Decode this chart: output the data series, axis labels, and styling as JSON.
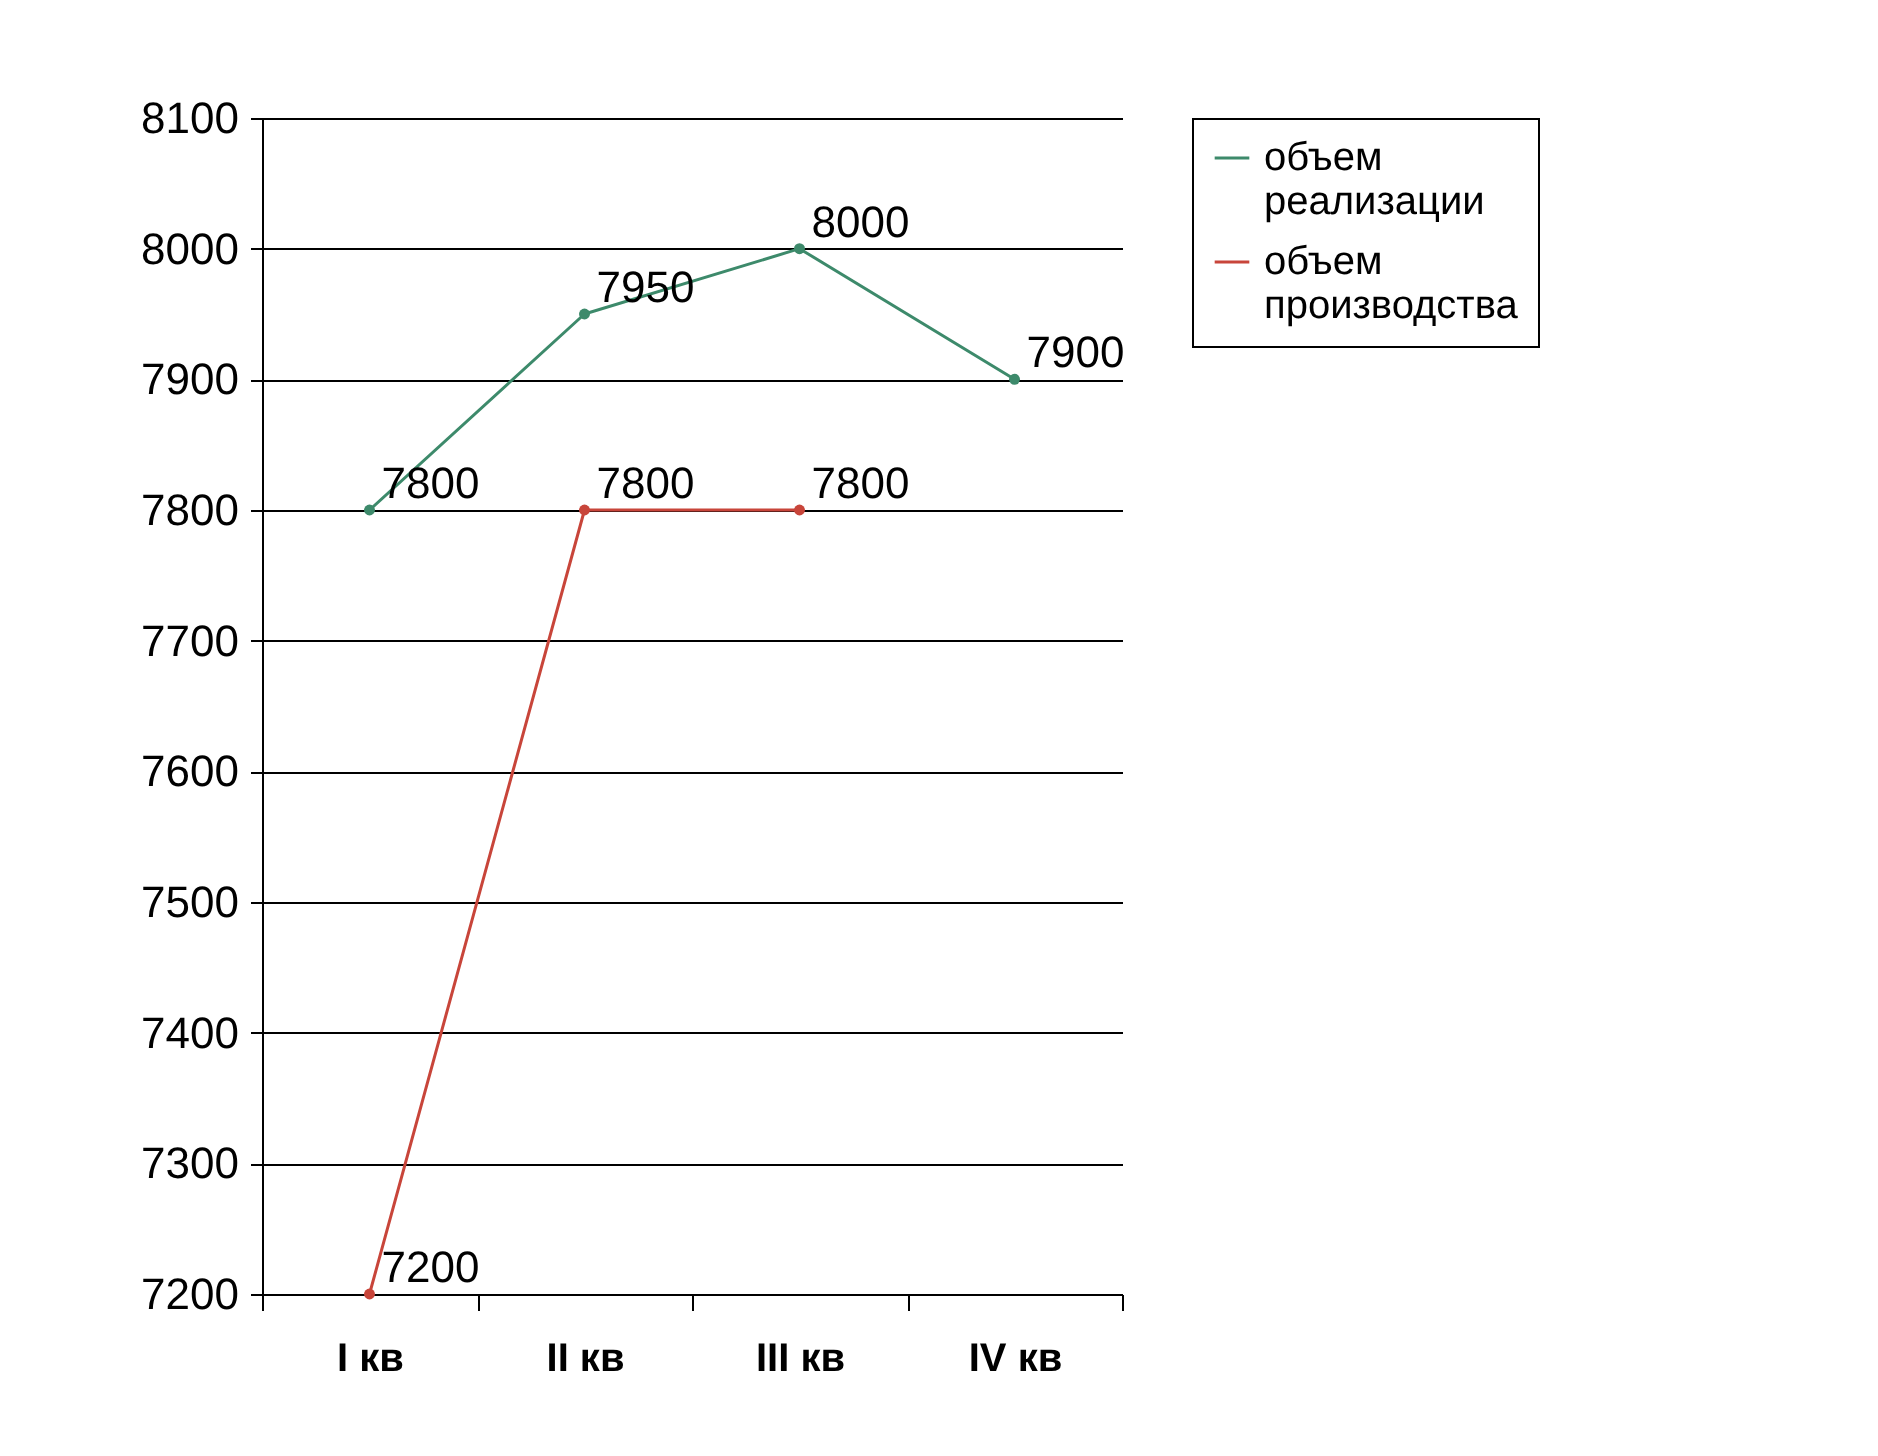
{
  "chart_data": {
    "type": "line",
    "categories": [
      "I кв",
      "II кв",
      "III кв",
      "IV кв"
    ],
    "series": [
      {
        "name": "объем реализации",
        "color": "#3d8a6b",
        "values": [
          7800,
          7950,
          8000,
          7900
        ]
      },
      {
        "name": "объем производства",
        "color": "#c8453a",
        "values": [
          7200,
          7800,
          7800,
          null
        ]
      }
    ],
    "ylim": [
      7200,
      8100
    ],
    "yticks": [
      7200,
      7300,
      7400,
      7500,
      7600,
      7700,
      7800,
      7900,
      8000,
      8100
    ],
    "grid": "y",
    "legend": "right",
    "marker": "circle",
    "line_style": "solid",
    "data_labels": true
  }
}
